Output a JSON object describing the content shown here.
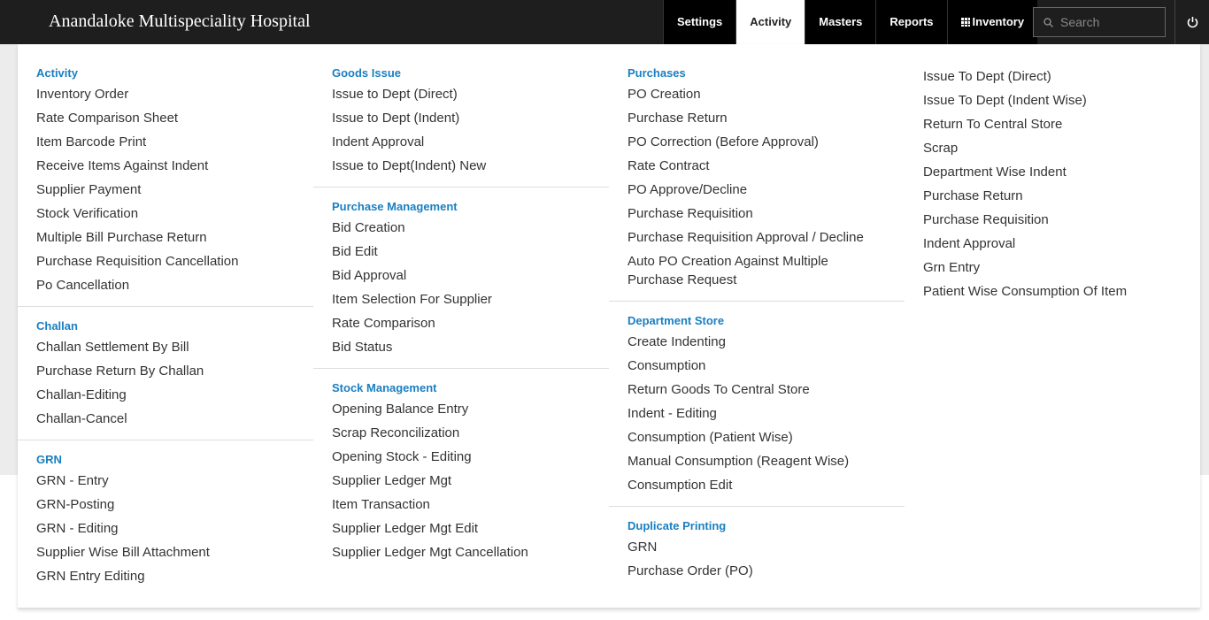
{
  "header": {
    "title": "Anandaloke Multispeciality Hospital"
  },
  "nav": {
    "items": [
      "Settings",
      "Activity",
      "Masters",
      "Reports",
      "Inventory"
    ],
    "active_item": 1,
    "search": "Search"
  },
  "menu": {
    "columns": [
      [
        {
          "heading": "Activity",
          "items": [
            "Inventory Order",
            "Rate Comparison Sheet",
            "Item Barcode Print",
            "Receive Items Against Indent",
            "Supplier Payment",
            "Stock Verification",
            "Multiple Bill Purchase Return",
            "Purchase Requisition Cancellation",
            "Po Cancellation"
          ]
        },
        {
          "heading": "Challan",
          "items": [
            "Challan Settlement By Bill",
            "Purchase Return By Challan",
            "Challan-Editing",
            "Challan-Cancel"
          ]
        },
        {
          "heading": "GRN",
          "items": [
            "GRN - Entry",
            "GRN-Posting",
            "GRN - Editing",
            "Supplier Wise Bill Attachment",
            "GRN Entry Editing"
          ]
        }
      ],
      [
        {
          "heading": "Goods Issue",
          "items": [
            "Issue to Dept (Direct)",
            "Issue to Dept (Indent)",
            "Indent Approval",
            "Issue to Dept(Indent) New"
          ]
        },
        {
          "heading": "Purchase Management",
          "items": [
            "Bid Creation",
            "Bid Edit",
            "Bid Approval",
            "Item Selection For Supplier",
            "Rate Comparison",
            "Bid Status"
          ]
        },
        {
          "heading": "Stock Management",
          "items": [
            "Opening Balance Entry",
            "Scrap Reconcilization",
            "Opening Stock - Editing",
            "Supplier Ledger Mgt",
            "Item Transaction",
            "Supplier Ledger Mgt Edit",
            "Supplier Ledger Mgt Cancellation"
          ]
        }
      ],
      [
        {
          "heading": "Purchases",
          "items": [
            "PO Creation",
            "Purchase Return",
            "PO Correction (Before Approval)",
            "Rate Contract",
            "PO Approve/Decline",
            "Purchase Requisition",
            "Purchase Requisition Approval / Decline",
            "Auto PO Creation Against Multiple Purchase Request"
          ]
        },
        {
          "heading": "Department Store",
          "items": [
            "Create Indenting",
            "Consumption",
            "Return Goods To Central Store",
            "Indent - Editing",
            "Consumption (Patient Wise)",
            "Manual Consumption (Reagent Wise)",
            "Consumption Edit"
          ]
        },
        {
          "heading": "Duplicate Printing",
          "items": [
            "GRN",
            "Purchase Order (PO)"
          ]
        }
      ],
      [
        {
          "items": [
            "Issue To Dept (Direct)",
            "Issue To Dept (Indent Wise)",
            "Return To Central Store",
            "Scrap",
            "Department Wise Indent",
            "Purchase Return",
            "Purchase Requisition",
            "Indent Approval",
            "Grn Entry",
            "Patient Wise Consumption Of Item"
          ]
        }
      ]
    ]
  }
}
